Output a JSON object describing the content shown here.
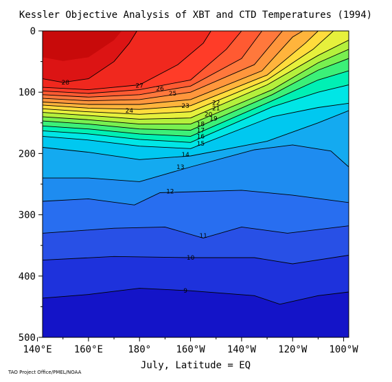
{
  "chart_data": {
    "type": "heatmap",
    "title": "Kessler Objective Analysis of XBT and CTD Temperatures (1994)",
    "xlabel": "July, Latitude = EQ",
    "ylabel": "",
    "credit": "TAO Project Office/PMEL/NOAA",
    "x_range": [
      142,
      98
    ],
    "y_range": [
      0,
      500
    ],
    "y_reversed": true,
    "x_ticks": [
      {
        "value": 140,
        "label": "140°E"
      },
      {
        "value": 160,
        "label": "160°E"
      },
      {
        "value": 180,
        "label": "180°"
      },
      {
        "value": 200,
        "label": "160°W"
      },
      {
        "value": 220,
        "label": "140°W"
      },
      {
        "value": 240,
        "label": "120°W"
      },
      {
        "value": 260,
        "label": "100°W"
      }
    ],
    "y_ticks": [
      {
        "value": 0,
        "label": "0"
      },
      {
        "value": 100,
        "label": "100"
      },
      {
        "value": 200,
        "label": "200"
      },
      {
        "value": 300,
        "label": "300"
      },
      {
        "value": 400,
        "label": "400"
      },
      {
        "value": 500,
        "label": "500"
      }
    ],
    "x_domain": [
      142,
      262
    ],
    "color_scale": [
      {
        "t": 8,
        "color": "#1414c8"
      },
      {
        "t": 9,
        "color": "#1e32dc"
      },
      {
        "t": 10,
        "color": "#2850e6"
      },
      {
        "t": 11,
        "color": "#286ef0"
      },
      {
        "t": 12,
        "color": "#1e8cf0"
      },
      {
        "t": 13,
        "color": "#14aaf0"
      },
      {
        "t": 14,
        "color": "#00c8f0"
      },
      {
        "t": 15,
        "color": "#00e6e6"
      },
      {
        "t": 16,
        "color": "#00f0b4"
      },
      {
        "t": 17,
        "color": "#3cf078"
      },
      {
        "t": 18,
        "color": "#78f050"
      },
      {
        "t": 19,
        "color": "#b4f03c"
      },
      {
        "t": 20,
        "color": "#e6f03c"
      },
      {
        "t": 21,
        "color": "#ffdc3c"
      },
      {
        "t": 22,
        "color": "#ffb43c"
      },
      {
        "t": 23,
        "color": "#ff963c"
      },
      {
        "t": 24,
        "color": "#ff783c"
      },
      {
        "t": 25,
        "color": "#ff5a32"
      },
      {
        "t": 26,
        "color": "#ff3c28"
      },
      {
        "t": 27,
        "color": "#f0281e"
      },
      {
        "t": 28,
        "color": "#dc1414"
      },
      {
        "t": 29,
        "color": "#c80a0a"
      }
    ],
    "isotherms": [
      {
        "t": 28,
        "label": "28",
        "depths": [
          {
            "x": 142,
            "d": 78
          },
          {
            "x": 150,
            "d": 84
          },
          {
            "x": 160,
            "d": 78
          },
          {
            "x": 170,
            "d": 50
          },
          {
            "x": 176,
            "d": 20
          },
          {
            "x": 179,
            "d": 0
          }
        ],
        "label_at": {
          "x": 151,
          "d": 84
        }
      },
      {
        "t": 27,
        "label": "27",
        "depths": [
          {
            "x": 142,
            "d": 92
          },
          {
            "x": 160,
            "d": 96
          },
          {
            "x": 180,
            "d": 88
          },
          {
            "x": 195,
            "d": 55
          },
          {
            "x": 205,
            "d": 20
          },
          {
            "x": 208,
            "d": 0
          }
        ],
        "label_at": {
          "x": 180,
          "d": 89
        }
      },
      {
        "t": 26,
        "label": "26",
        "depths": [
          {
            "x": 142,
            "d": 98
          },
          {
            "x": 160,
            "d": 102
          },
          {
            "x": 180,
            "d": 96
          },
          {
            "x": 200,
            "d": 80
          },
          {
            "x": 214,
            "d": 30
          },
          {
            "x": 220,
            "d": 0
          }
        ],
        "label_at": {
          "x": 188,
          "d": 94
        }
      },
      {
        "t": 25,
        "label": "25",
        "depths": [
          {
            "x": 142,
            "d": 104
          },
          {
            "x": 160,
            "d": 108
          },
          {
            "x": 180,
            "d": 104
          },
          {
            "x": 200,
            "d": 90
          },
          {
            "x": 220,
            "d": 45
          },
          {
            "x": 228,
            "d": 0
          }
        ],
        "label_at": {
          "x": 193,
          "d": 102
        }
      },
      {
        "t": 24,
        "label": "24",
        "depths": [
          {
            "x": 142,
            "d": 110
          },
          {
            "x": 160,
            "d": 114
          },
          {
            "x": 180,
            "d": 112
          },
          {
            "x": 200,
            "d": 100
          },
          {
            "x": 225,
            "d": 55
          },
          {
            "x": 236,
            "d": 0
          }
        ],
        "label_at": {
          "x": 176,
          "d": 130
        }
      },
      {
        "t": 23,
        "label": "23",
        "depths": [
          {
            "x": 142,
            "d": 116
          },
          {
            "x": 160,
            "d": 120
          },
          {
            "x": 180,
            "d": 120
          },
          {
            "x": 200,
            "d": 112
          },
          {
            "x": 228,
            "d": 65
          },
          {
            "x": 240,
            "d": 10
          },
          {
            "x": 244,
            "d": 0
          }
        ],
        "label_at": {
          "x": 198,
          "d": 122
        }
      },
      {
        "t": 22,
        "label": "22",
        "depths": [
          {
            "x": 142,
            "d": 121
          },
          {
            "x": 160,
            "d": 126
          },
          {
            "x": 180,
            "d": 128
          },
          {
            "x": 200,
            "d": 122
          },
          {
            "x": 230,
            "d": 72
          },
          {
            "x": 245,
            "d": 20
          },
          {
            "x": 250,
            "d": 0
          }
        ],
        "label_at": {
          "x": 210,
          "d": 117
        }
      },
      {
        "t": 21,
        "label": "21",
        "depths": [
          {
            "x": 142,
            "d": 127
          },
          {
            "x": 160,
            "d": 132
          },
          {
            "x": 180,
            "d": 136
          },
          {
            "x": 200,
            "d": 132
          },
          {
            "x": 230,
            "d": 80
          },
          {
            "x": 248,
            "d": 30
          },
          {
            "x": 256,
            "d": 0
          }
        ],
        "label_at": {
          "x": 210,
          "d": 126
        }
      },
      {
        "t": 20,
        "label": "20",
        "depths": [
          {
            "x": 142,
            "d": 133
          },
          {
            "x": 160,
            "d": 138
          },
          {
            "x": 180,
            "d": 144
          },
          {
            "x": 200,
            "d": 142
          },
          {
            "x": 230,
            "d": 88
          },
          {
            "x": 250,
            "d": 40
          },
          {
            "x": 262,
            "d": 15
          }
        ],
        "label_at": {
          "x": 207,
          "d": 136
        }
      },
      {
        "t": 19,
        "label": "19",
        "depths": [
          {
            "x": 142,
            "d": 140
          },
          {
            "x": 160,
            "d": 145
          },
          {
            "x": 180,
            "d": 152
          },
          {
            "x": 200,
            "d": 152
          },
          {
            "x": 232,
            "d": 96
          },
          {
            "x": 250,
            "d": 52
          },
          {
            "x": 262,
            "d": 30
          }
        ],
        "label_at": {
          "x": 209,
          "d": 143
        }
      },
      {
        "t": 18,
        "label": "18",
        "depths": [
          {
            "x": 142,
            "d": 147
          },
          {
            "x": 160,
            "d": 152
          },
          {
            "x": 180,
            "d": 160
          },
          {
            "x": 200,
            "d": 162
          },
          {
            "x": 232,
            "d": 104
          },
          {
            "x": 250,
            "d": 64
          },
          {
            "x": 262,
            "d": 45
          }
        ],
        "label_at": {
          "x": 204,
          "d": 152
        }
      },
      {
        "t": 17,
        "label": "17",
        "depths": [
          {
            "x": 142,
            "d": 155
          },
          {
            "x": 160,
            "d": 160
          },
          {
            "x": 180,
            "d": 168
          },
          {
            "x": 200,
            "d": 172
          },
          {
            "x": 232,
            "d": 114
          },
          {
            "x": 250,
            "d": 80
          },
          {
            "x": 262,
            "d": 65
          }
        ],
        "label_at": {
          "x": 204,
          "d": 162
        }
      },
      {
        "t": 16,
        "label": "16",
        "depths": [
          {
            "x": 142,
            "d": 163
          },
          {
            "x": 160,
            "d": 168
          },
          {
            "x": 180,
            "d": 177
          },
          {
            "x": 200,
            "d": 182
          },
          {
            "x": 232,
            "d": 124
          },
          {
            "x": 250,
            "d": 100
          },
          {
            "x": 262,
            "d": 88
          }
        ],
        "label_at": {
          "x": 204,
          "d": 172
        }
      },
      {
        "t": 15,
        "label": "15",
        "depths": [
          {
            "x": 142,
            "d": 172
          },
          {
            "x": 160,
            "d": 178
          },
          {
            "x": 180,
            "d": 188
          },
          {
            "x": 200,
            "d": 192
          },
          {
            "x": 232,
            "d": 140
          },
          {
            "x": 250,
            "d": 125
          },
          {
            "x": 262,
            "d": 118
          }
        ],
        "label_at": {
          "x": 204,
          "d": 184
        }
      },
      {
        "t": 14,
        "label": "14",
        "depths": [
          {
            "x": 142,
            "d": 190
          },
          {
            "x": 160,
            "d": 198
          },
          {
            "x": 180,
            "d": 210
          },
          {
            "x": 200,
            "d": 204
          },
          {
            "x": 230,
            "d": 180
          },
          {
            "x": 250,
            "d": 150
          },
          {
            "x": 262,
            "d": 130
          }
        ],
        "label_at": {
          "x": 198,
          "d": 202
        }
      },
      {
        "t": 13,
        "label": "13",
        "depths": [
          {
            "x": 142,
            "d": 240
          },
          {
            "x": 160,
            "d": 240
          },
          {
            "x": 180,
            "d": 246
          },
          {
            "x": 200,
            "d": 222
          },
          {
            "x": 225,
            "d": 194
          },
          {
            "x": 240,
            "d": 186
          },
          {
            "x": 255,
            "d": 196
          },
          {
            "x": 262,
            "d": 222
          }
        ],
        "label_at": {
          "x": 196,
          "d": 222
        }
      },
      {
        "t": 12,
        "label": "12",
        "depths": [
          {
            "x": 142,
            "d": 278
          },
          {
            "x": 160,
            "d": 274
          },
          {
            "x": 178,
            "d": 284
          },
          {
            "x": 188,
            "d": 264
          },
          {
            "x": 220,
            "d": 260
          },
          {
            "x": 240,
            "d": 268
          },
          {
            "x": 262,
            "d": 280
          }
        ],
        "label_at": {
          "x": 192,
          "d": 262
        }
      },
      {
        "t": 11,
        "label": "11",
        "depths": [
          {
            "x": 142,
            "d": 330
          },
          {
            "x": 170,
            "d": 322
          },
          {
            "x": 190,
            "d": 320
          },
          {
            "x": 205,
            "d": 338
          },
          {
            "x": 220,
            "d": 320
          },
          {
            "x": 238,
            "d": 330
          },
          {
            "x": 262,
            "d": 318
          }
        ],
        "label_at": {
          "x": 205,
          "d": 334
        }
      },
      {
        "t": 10,
        "label": "10",
        "depths": [
          {
            "x": 142,
            "d": 374
          },
          {
            "x": 170,
            "d": 368
          },
          {
            "x": 200,
            "d": 370
          },
          {
            "x": 225,
            "d": 370
          },
          {
            "x": 240,
            "d": 380
          },
          {
            "x": 262,
            "d": 366
          }
        ],
        "label_at": {
          "x": 200,
          "d": 370
        }
      },
      {
        "t": 9,
        "label": "9",
        "depths": [
          {
            "x": 142,
            "d": 436
          },
          {
            "x": 160,
            "d": 430
          },
          {
            "x": 180,
            "d": 420
          },
          {
            "x": 200,
            "d": 424
          },
          {
            "x": 225,
            "d": 432
          },
          {
            "x": 235,
            "d": 446
          },
          {
            "x": 250,
            "d": 432
          },
          {
            "x": 262,
            "d": 426
          }
        ],
        "label_at": {
          "x": 198,
          "d": 424
        }
      }
    ]
  }
}
